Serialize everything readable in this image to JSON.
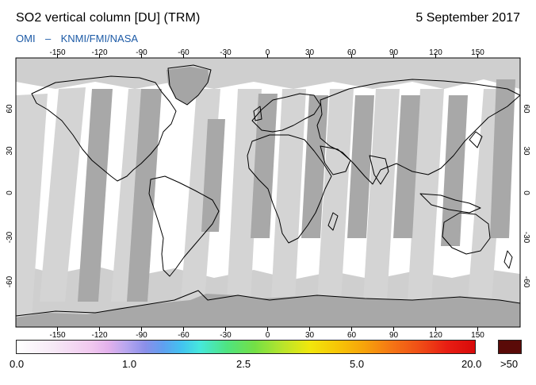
{
  "header": {
    "title": "SO2 vertical column [DU] (TRM)",
    "date": "5 September 2017",
    "source_left": "OMI",
    "source_sep": "–",
    "source_right": "KNMI/FMI/NASA"
  },
  "map": {
    "lon_ticks": [
      "-150",
      "-120",
      "-90",
      "-60",
      "-30",
      "0",
      "30",
      "60",
      "90",
      "120",
      "150"
    ],
    "lat_ticks": [
      "60",
      "30",
      "0",
      "-30",
      "-60"
    ],
    "colors": {
      "ocean": "#ffffff",
      "no_data": "#cfcfcf",
      "dark_swath": "#a5a5a5",
      "coast": "#000000"
    }
  },
  "colorbar": {
    "labels": [
      "0.0",
      "1.0",
      "2.5",
      "5.0",
      "20.0"
    ],
    "over_label": ">50",
    "over_color": "#5a0a08"
  }
}
